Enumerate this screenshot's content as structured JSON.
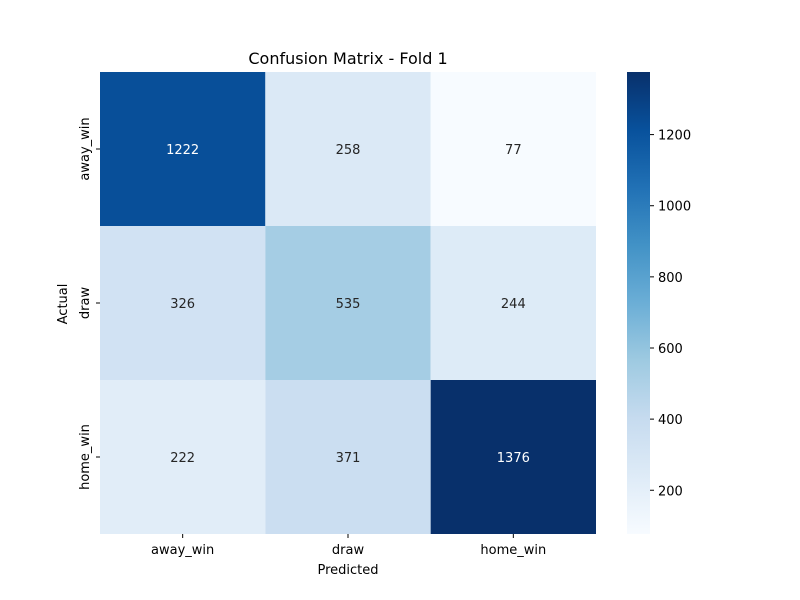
{
  "chart_data": {
    "type": "heatmap",
    "title": "Confusion Matrix - Fold 1",
    "xlabel": "Predicted",
    "ylabel": "Actual",
    "x_categories": [
      "away_win",
      "draw",
      "home_win"
    ],
    "y_categories": [
      "away_win",
      "draw",
      "home_win"
    ],
    "values": [
      [
        1222,
        258,
        77
      ],
      [
        326,
        535,
        244
      ],
      [
        222,
        371,
        1376
      ]
    ],
    "colormap": "Blues",
    "color_range": [
      77,
      1376
    ],
    "colorbar_ticks": [
      200,
      400,
      600,
      800,
      1000,
      1200
    ],
    "grid": false
  }
}
